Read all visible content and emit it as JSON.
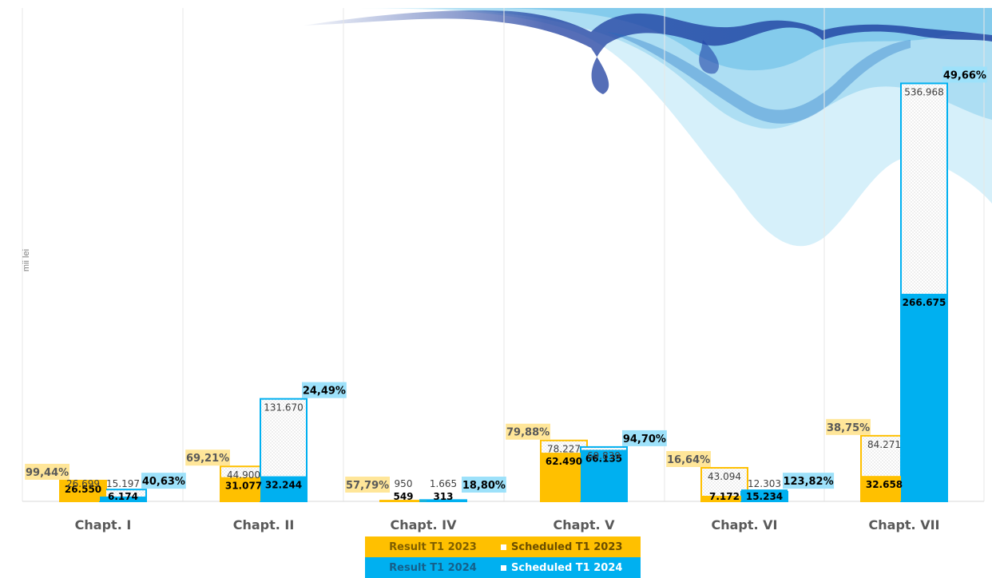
{
  "colors": {
    "result_2023": "#FFC000",
    "result_2024": "#00B0F0",
    "pct_2023_bg": "#FFE699",
    "pct_2024_bg": "#9DE1FA",
    "axis": "#D9D9D9"
  },
  "legend": {
    "result_2023": "Result T1 2023",
    "scheduled_2023": "Scheduled T1 2023",
    "result_2024": "Result T1 2024",
    "scheduled_2024": "Scheduled T1 2024"
  },
  "chart_data": {
    "type": "bar",
    "ylabel": "mii lei",
    "ylim": [
      0,
      560000
    ],
    "grid": "vertical separators",
    "legend_position": "bottom",
    "categories": [
      "Chapt. I",
      "Chapt. II",
      "Chapt. IV",
      "Chapt. V",
      "Chapt. VI",
      "Chapt. VII"
    ],
    "series": [
      {
        "name": "Result T1 2023",
        "values": [
          26550,
          31077,
          549,
          62490,
          7172,
          32658
        ],
        "labels": [
          "26.550",
          "31.077",
          "549",
          "62.490",
          "7.172",
          "32.658"
        ]
      },
      {
        "name": "Scheduled T1 2023",
        "values": [
          26699,
          44900,
          950,
          78227,
          43094,
          84271
        ],
        "labels": [
          "26.699",
          "44.900",
          "950",
          "78.227",
          "43.094",
          "84.271"
        ]
      },
      {
        "name": "Result T1 2024",
        "values": [
          6174,
          32244,
          313,
          66135,
          15234,
          266675
        ],
        "labels": [
          "6.174",
          "32.244",
          "313",
          "66.135",
          "15.234",
          "266.675"
        ]
      },
      {
        "name": "Scheduled T1 2024",
        "values": [
          15197,
          131670,
          1665,
          69839,
          12303,
          536968
        ],
        "labels": [
          "15.197",
          "131.670",
          "1.665",
          "69.839",
          "12.303",
          "536.968"
        ]
      }
    ],
    "pct_2023": [
      "99,44%",
      "69,21%",
      "57,79%",
      "79,88%",
      "16,64%",
      "38,75%"
    ],
    "pct_2024": [
      "40,63%",
      "24,49%",
      "18,80%",
      "94,70%",
      "123,82%",
      "49,66%"
    ]
  }
}
